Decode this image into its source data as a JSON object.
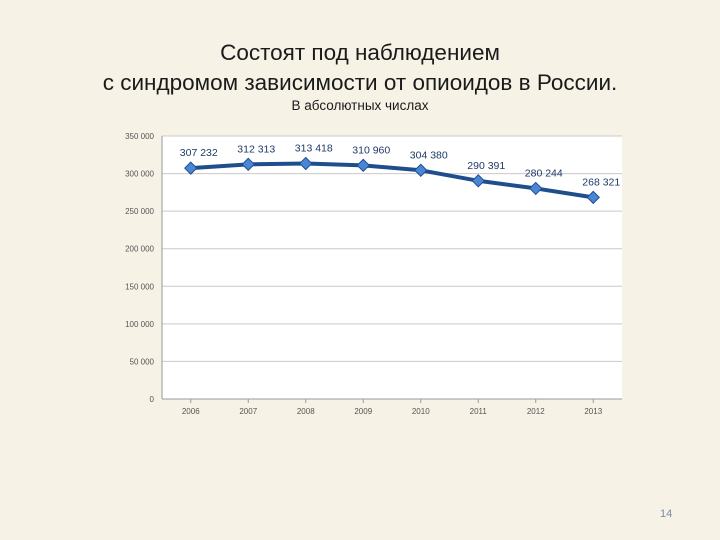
{
  "slide": {
    "title_line1": "Состоят под наблюдением",
    "title_line2": "с синдромом зависимости от опиоидов в России.",
    "page_number": "14"
  },
  "chart_data": {
    "type": "line",
    "title": "",
    "subtitle": "В абсолютных числах",
    "xlabel": "",
    "ylabel": "",
    "categories": [
      "2006",
      "2007",
      "2008",
      "2009",
      "2010",
      "2011",
      "2012",
      "2013"
    ],
    "series": [
      {
        "values": [
          307232,
          312313,
          313418,
          310960,
          304380,
          290391,
          280244,
          268321
        ],
        "labels": [
          "307 232",
          "312 313",
          "313 418",
          "310 960",
          "304 380",
          "290 391",
          "280 244",
          "268 321"
        ],
        "color": "#1f4e8c",
        "marker_color": "#4a86d6"
      }
    ],
    "ylim": [
      0,
      350000
    ],
    "yticks": [
      0,
      50000,
      100000,
      150000,
      200000,
      250000,
      300000,
      350000
    ],
    "ytick_labels": [
      "0",
      "50 000",
      "100 000",
      "150 000",
      "200 000",
      "250 000",
      "300 000",
      "350 000"
    ],
    "grid": true,
    "legend": "none"
  }
}
